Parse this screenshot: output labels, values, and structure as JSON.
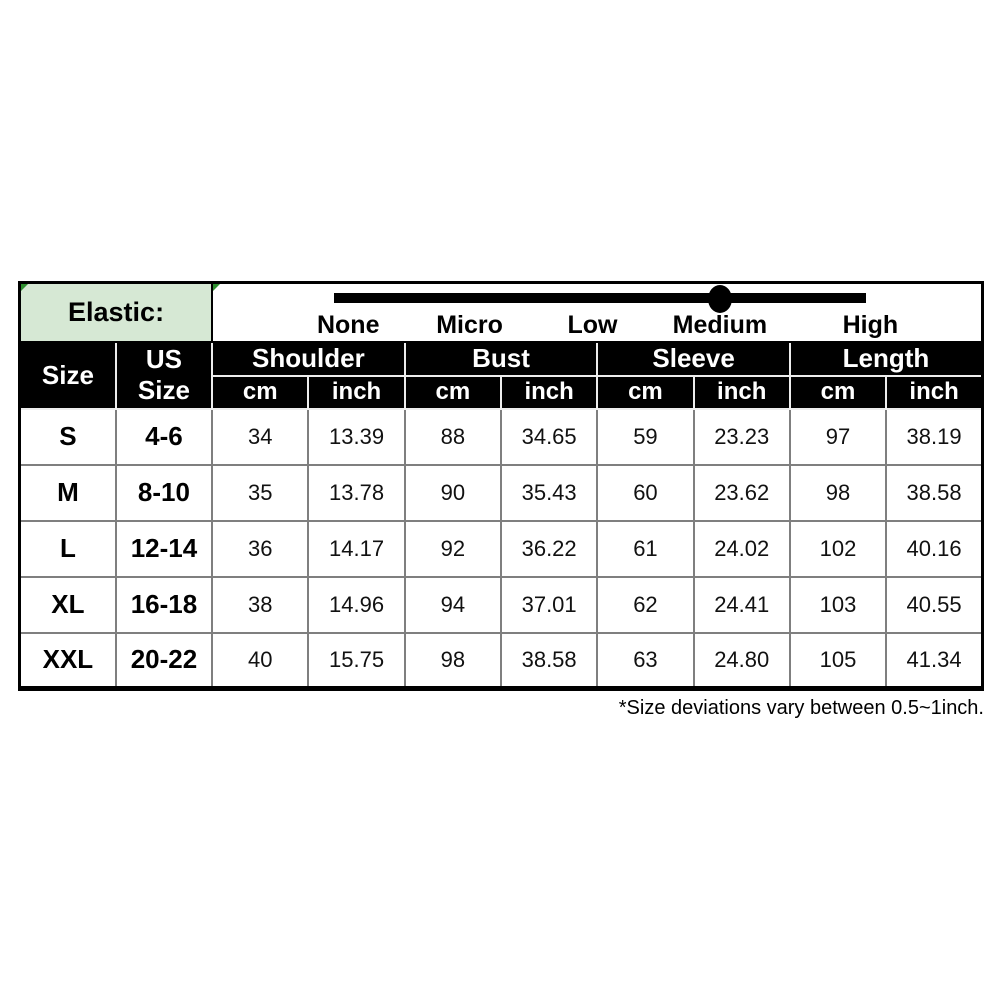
{
  "elastic": {
    "label": "Elastic:",
    "levels": [
      "None",
      "Micro",
      "Low",
      "Medium",
      "High"
    ],
    "selected": "Medium"
  },
  "chart_data": {
    "type": "table",
    "header": {
      "size": "Size",
      "us_size": "US Size",
      "groups": [
        {
          "label": "Shoulder",
          "units": [
            "cm",
            "inch"
          ]
        },
        {
          "label": "Bust",
          "units": [
            "cm",
            "inch"
          ]
        },
        {
          "label": "Sleeve",
          "units": [
            "cm",
            "inch"
          ]
        },
        {
          "label": "Length",
          "units": [
            "cm",
            "inch"
          ]
        }
      ]
    },
    "rows": [
      {
        "size": "S",
        "us_size": "4-6",
        "values": [
          "34",
          "13.39",
          "88",
          "34.65",
          "59",
          "23.23",
          "97",
          "38.19"
        ]
      },
      {
        "size": "M",
        "us_size": "8-10",
        "values": [
          "35",
          "13.78",
          "90",
          "35.43",
          "60",
          "23.62",
          "98",
          "38.58"
        ]
      },
      {
        "size": "L",
        "us_size": "12-14",
        "values": [
          "36",
          "14.17",
          "92",
          "36.22",
          "61",
          "24.02",
          "102",
          "40.16"
        ]
      },
      {
        "size": "XL",
        "us_size": "16-18",
        "values": [
          "38",
          "14.96",
          "94",
          "37.01",
          "62",
          "24.41",
          "103",
          "40.55"
        ]
      },
      {
        "size": "XXL",
        "us_size": "20-22",
        "values": [
          "40",
          "15.75",
          "98",
          "38.58",
          "63",
          "24.80",
          "105",
          "41.34"
        ]
      }
    ]
  },
  "footnote": "*Size deviations vary between 0.5~1inch.",
  "colors": {
    "elastic_cell_bg": "#d6e8d4",
    "header_bg": "#000000",
    "header_text": "#ffffff",
    "grid_line": "#7f7f7f",
    "slider": "#000000",
    "note_marker": "#2f8f2f"
  }
}
